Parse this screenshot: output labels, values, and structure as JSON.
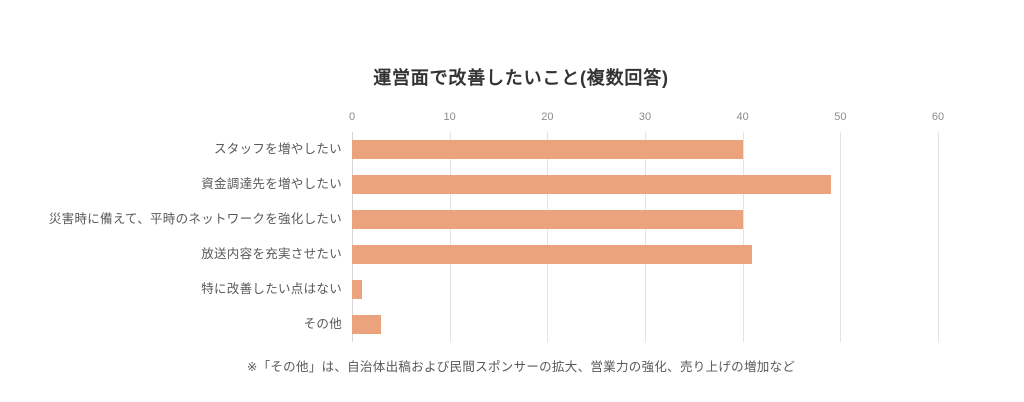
{
  "title": "運営面で改善したいこと(複数回答)",
  "footnote": "※「その他」は、自治体出稿および民間スポンサーの拡大、営業力の強化、売り上げの増加など",
  "colors": {
    "bar": "#eba37d",
    "grid": "#e4e4e4",
    "zero_line": "#d6d6d6",
    "title_text": "#333333",
    "label_text": "#595959",
    "tick_text": "#8c8c8c",
    "background": "#ffffff"
  },
  "chart_data": {
    "type": "bar",
    "orientation": "horizontal",
    "title": "運営面で改善したいこと(複数回答)",
    "categories": [
      "スタッフを増やしたい",
      "資金調達先を増やしたい",
      "災害時に備えて、平時のネットワークを強化したい",
      "放送内容を充実させたい",
      "特に改善したい点はない",
      "その他"
    ],
    "values": [
      40,
      49,
      40,
      41,
      1,
      3
    ],
    "xlabel": "",
    "ylabel": "",
    "xlim": [
      0,
      60
    ],
    "xticks": [
      0,
      10,
      20,
      30,
      40,
      50,
      60
    ],
    "grid": true,
    "legend": false,
    "annotation": "※「その他」は、自治体出稿および民間スポンサーの拡大、営業力の強化、売り上げの増加など"
  }
}
